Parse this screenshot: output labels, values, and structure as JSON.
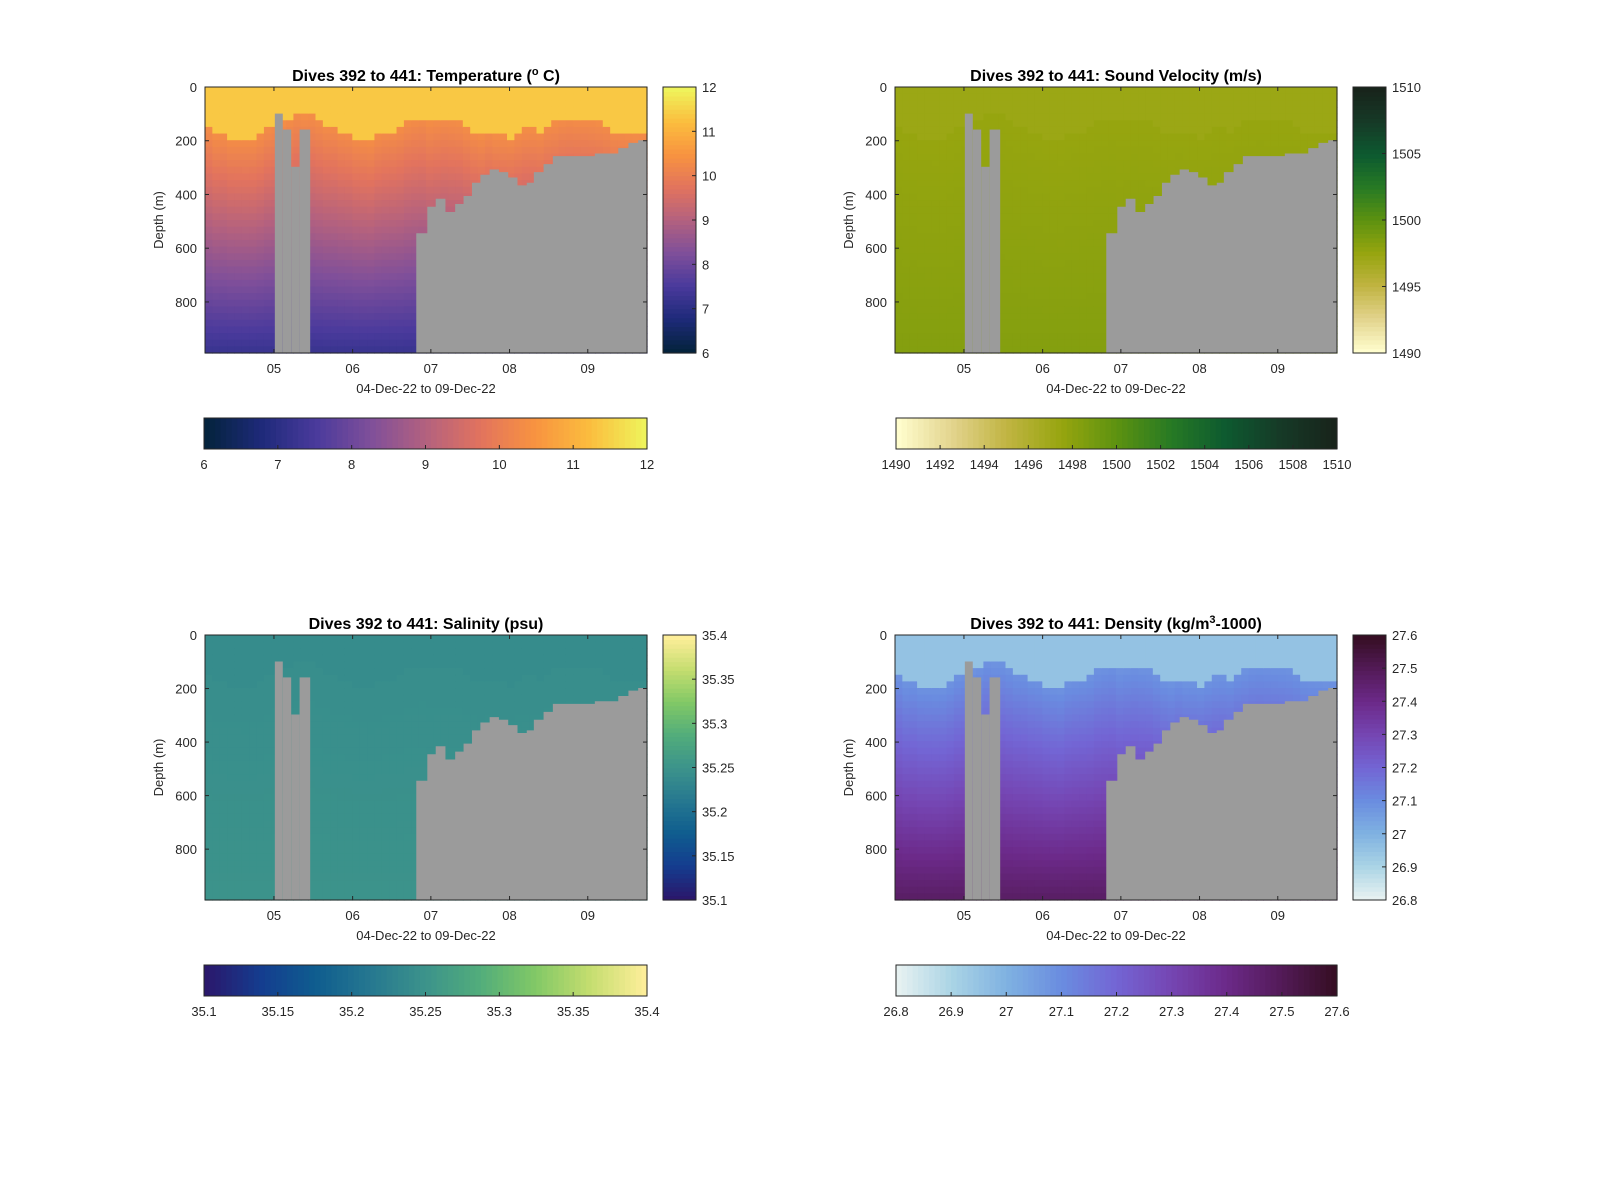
{
  "figure": {
    "background": "#ffffff",
    "mask_color": "#9b9b9b"
  },
  "chart_data": [
    {
      "type": "heatmap",
      "title_main": "Dives 392 to 441: Temperature (",
      "title_sup": "o",
      "title_end": " C)",
      "xlabel": "04-Dec-22 to 09-Dec-22",
      "ylabel": "Depth (m)",
      "x_ticks": [
        "05",
        "06",
        "07",
        "08",
        "09"
      ],
      "y_ticks": [
        "0",
        "200",
        "400",
        "600",
        "800"
      ],
      "y_direction": "reversed",
      "ylim": [
        0,
        990
      ],
      "xlim": [
        "2022-12-04 02:00",
        "2022-12-09 19:00"
      ],
      "colormap": "thermal",
      "colormap_stops": [
        "#04233d",
        "#1e2a7a",
        "#4a3a9c",
        "#7f4f9a",
        "#b3617f",
        "#e2735e",
        "#f89340",
        "#fbbd3e",
        "#eff35b"
      ],
      "clim": [
        6,
        12
      ],
      "vertical_colorbar_ticks": [
        "6",
        "7",
        "8",
        "9",
        "10",
        "11",
        "12"
      ],
      "horizontal_colorbar_ticks": [
        "6",
        "7",
        "8",
        "9",
        "10",
        "11",
        "12"
      ],
      "profile": {
        "surface": 11.4,
        "mixed_layer_depth": 150,
        "deep_value": 7.2
      },
      "grid": false
    },
    {
      "type": "heatmap",
      "title_main": "Dives 392 to 441: Sound Velocity (m/s)",
      "title_sup": "",
      "title_end": "",
      "xlabel": "04-Dec-22 to 09-Dec-22",
      "ylabel": "Depth (m)",
      "x_ticks": [
        "05",
        "06",
        "07",
        "08",
        "09"
      ],
      "y_ticks": [
        "0",
        "200",
        "400",
        "600",
        "800"
      ],
      "y_direction": "reversed",
      "ylim": [
        0,
        990
      ],
      "xlim": [
        "2022-12-04 02:00",
        "2022-12-09 19:00"
      ],
      "colormap": "speed",
      "colormap_stops": [
        "#fffdcd",
        "#e2d38c",
        "#c0b441",
        "#96a50f",
        "#5d9210",
        "#277a24",
        "#0d5a30",
        "#163a27",
        "#18241b"
      ],
      "clim": [
        1490,
        1510
      ],
      "vertical_colorbar_ticks": [
        "1490",
        "1495",
        "1500",
        "1505",
        "1510"
      ],
      "horizontal_colorbar_ticks": [
        "1490",
        "1492",
        "1494",
        "1496",
        "1498",
        "1500",
        "1502",
        "1504",
        "1506",
        "1508",
        "1510"
      ],
      "profile": {
        "surface": 1497.2,
        "mixed_layer_depth": 150,
        "deep_value": 1498.3
      },
      "grid": false
    },
    {
      "type": "heatmap",
      "title_main": "Dives 392 to 441: Salinity (psu)",
      "title_sup": "",
      "title_end": "",
      "xlabel": "04-Dec-22 to 09-Dec-22",
      "ylabel": "Depth (m)",
      "x_ticks": [
        "05",
        "06",
        "07",
        "08",
        "09"
      ],
      "y_ticks": [
        "0",
        "200",
        "400",
        "600",
        "800"
      ],
      "y_direction": "reversed",
      "ylim": [
        0,
        990
      ],
      "xlim": [
        "2022-12-04 02:00",
        "2022-12-09 19:00"
      ],
      "colormap": "haline",
      "colormap_stops": [
        "#2a186c",
        "#143d8f",
        "#0f5d8f",
        "#267890",
        "#3c938b",
        "#52ad7b",
        "#81c866",
        "#c4dd6f",
        "#fdee99"
      ],
      "clim": [
        35.1,
        35.4
      ],
      "vertical_colorbar_ticks": [
        "35.1",
        "35.15",
        "35.2",
        "35.25",
        "35.3",
        "35.35",
        "35.4"
      ],
      "horizontal_colorbar_ticks": [
        "35.1",
        "35.15",
        "35.2",
        "35.25",
        "35.3",
        "35.35",
        "35.4"
      ],
      "profile": {
        "surface": 35.24,
        "mixed_layer_depth": 150,
        "deep_value": 35.25
      },
      "grid": false
    },
    {
      "type": "heatmap",
      "title_main": "Dives 392 to 441: Density (kg/m",
      "title_sup": "3",
      "title_end": "-1000)",
      "xlabel": "04-Dec-22 to 09-Dec-22",
      "ylabel": "Depth (m)",
      "x_ticks": [
        "05",
        "06",
        "07",
        "08",
        "09"
      ],
      "y_ticks": [
        "0",
        "200",
        "400",
        "600",
        "800"
      ],
      "y_direction": "reversed",
      "ylim": [
        0,
        990
      ],
      "xlim": [
        "2022-12-04 02:00",
        "2022-12-09 19:00"
      ],
      "colormap": "dense",
      "colormap_stops": [
        "#e6f1f1",
        "#a9d3e5",
        "#7fb1e1",
        "#6a8ce0",
        "#7365d4",
        "#7546b3",
        "#6c2a8a",
        "#541b59",
        "#360e24"
      ],
      "clim": [
        26.8,
        27.6
      ],
      "vertical_colorbar_ticks": [
        "26.8",
        "26.9",
        "27",
        "27.1",
        "27.2",
        "27.3",
        "27.4",
        "27.5",
        "27.6"
      ],
      "horizontal_colorbar_ticks": [
        "26.8",
        "26.9",
        "27",
        "27.1",
        "27.2",
        "27.3",
        "27.4",
        "27.5",
        "27.6"
      ],
      "profile": {
        "surface": 26.95,
        "mixed_layer_depth": 150,
        "deep_value": 27.48
      },
      "grid": false
    }
  ]
}
